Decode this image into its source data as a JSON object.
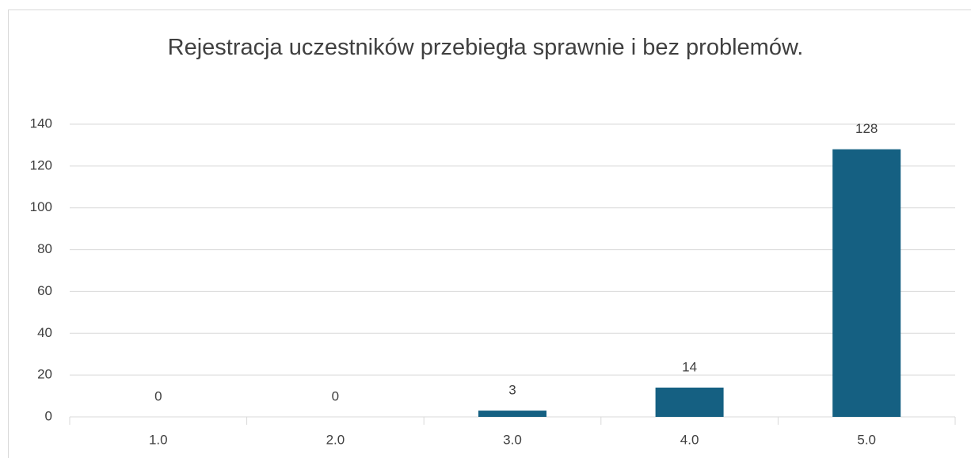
{
  "chart_data": {
    "type": "bar",
    "title": "Rejestracja uczestników przebiegła sprawnie i bez problemów.",
    "categories": [
      "1.0",
      "2.0",
      "3.0",
      "4.0",
      "5.0"
    ],
    "values": [
      0,
      0,
      3,
      14,
      128
    ],
    "color": "#156082",
    "ylim": [
      0,
      140
    ],
    "yticks": [
      0,
      20,
      40,
      60,
      80,
      100,
      120,
      140
    ],
    "grid": true
  }
}
